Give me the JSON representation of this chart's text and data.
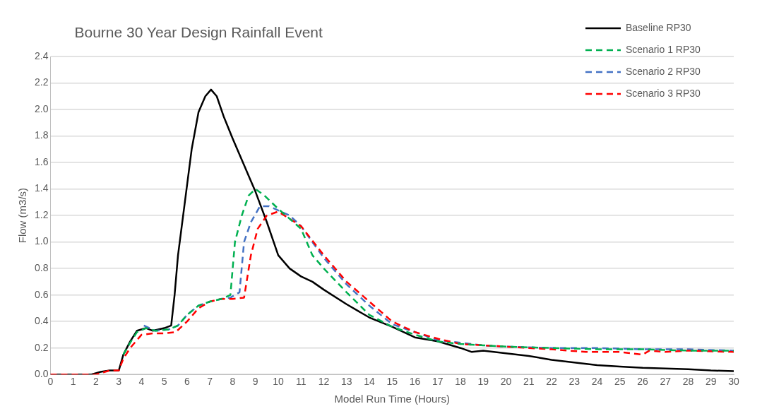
{
  "chart_data": {
    "type": "line",
    "title": "Bourne 30 Year Design Rainfall Event",
    "xlabel": "Model Run Time (Hours)",
    "ylabel": "Flow (m3/s)",
    "xlim": [
      0,
      30
    ],
    "xticks": [
      0,
      1,
      2,
      3,
      4,
      5,
      6,
      7,
      8,
      9,
      10,
      11,
      12,
      13,
      14,
      15,
      16,
      17,
      18,
      19,
      20,
      21,
      22,
      23,
      24,
      25,
      26,
      27,
      28,
      29,
      30
    ],
    "ylim": [
      0,
      2.4
    ],
    "yticks": [
      {
        "value": 0,
        "label": "0.0"
      },
      0.2,
      0.4,
      0.6,
      0.8,
      {
        "value": 1,
        "label": "1.0"
      },
      1.2,
      1.4,
      1.6,
      1.8,
      {
        "value": 2,
        "label": "2.0"
      },
      2.2,
      2.4
    ],
    "grid": "y",
    "legend": "top right",
    "marker": "none",
    "series": [
      {
        "name": "Baseline RP30",
        "color": "#000000",
        "line_style": "solid",
        "x": [
          0,
          1.8,
          2.2,
          2.6,
          3,
          3.2,
          3.5,
          3.8,
          4.2,
          4.5,
          5,
          5.3,
          5.45,
          5.6,
          5.9,
          6.2,
          6.5,
          6.8,
          7.05,
          7.3,
          7.6,
          8,
          8.5,
          9,
          9.5,
          10,
          10.5,
          11,
          11.5,
          12,
          13,
          14,
          15,
          16,
          17,
          18,
          18.5,
          19,
          20,
          21,
          22,
          23,
          24,
          25,
          26,
          27,
          28,
          29,
          30
        ],
        "values": [
          0,
          0,
          0.02,
          0.03,
          0.03,
          0.15,
          0.25,
          0.33,
          0.35,
          0.33,
          0.35,
          0.37,
          0.6,
          0.9,
          1.3,
          1.7,
          1.98,
          2.1,
          2.15,
          2.1,
          1.95,
          1.78,
          1.58,
          1.38,
          1.15,
          0.9,
          0.8,
          0.74,
          0.7,
          0.64,
          0.53,
          0.43,
          0.36,
          0.28,
          0.25,
          0.2,
          0.17,
          0.18,
          0.16,
          0.14,
          0.11,
          0.09,
          0.07,
          0.06,
          0.05,
          0.045,
          0.04,
          0.03,
          0.025
        ]
      },
      {
        "name": "Scenario 1 RP30",
        "color": "#00b050",
        "line_style": "dashed",
        "x": [
          3.2,
          3.5,
          3.8,
          4.2,
          4.6,
          5.2,
          5.6,
          6,
          6.5,
          7,
          7.5,
          7.9,
          8.1,
          8.4,
          8.7,
          9,
          9.4,
          10,
          11,
          11.5,
          12,
          13,
          14,
          15,
          16,
          17,
          18,
          19,
          20,
          22,
          24,
          26,
          28,
          30
        ],
        "values": [
          0.15,
          0.24,
          0.32,
          0.35,
          0.33,
          0.34,
          0.37,
          0.45,
          0.52,
          0.55,
          0.57,
          0.6,
          1,
          1.2,
          1.35,
          1.4,
          1.35,
          1.25,
          1.1,
          0.9,
          0.8,
          0.62,
          0.45,
          0.36,
          0.3,
          0.25,
          0.23,
          0.22,
          0.21,
          0.2,
          0.19,
          0.19,
          0.18,
          0.18
        ]
      },
      {
        "name": "Scenario 2 RP30",
        "color": "#4472c4",
        "line_style": "dashed",
        "x": [
          4.1,
          4.6,
          5.2,
          5.6,
          6,
          6.5,
          7,
          7.5,
          7.9,
          8.3,
          8.5,
          8.8,
          9.2,
          9.6,
          10.5,
          11,
          12,
          13,
          14,
          15,
          16,
          17,
          18,
          19,
          20,
          22,
          24,
          26,
          28,
          30
        ],
        "values": [
          0.37,
          0.33,
          0.34,
          0.37,
          0.45,
          0.52,
          0.55,
          0.57,
          0.58,
          0.62,
          1,
          1.15,
          1.27,
          1.27,
          1.2,
          1.12,
          0.88,
          0.68,
          0.52,
          0.38,
          0.32,
          0.26,
          0.24,
          0.22,
          0.21,
          0.2,
          0.2,
          0.19,
          0.19,
          0.18
        ]
      },
      {
        "name": "Scenario 3 RP30",
        "color": "#ff0000",
        "line_style": "dashed",
        "x": [
          0,
          2,
          2.6,
          3,
          3.2,
          3.5,
          4,
          4.5,
          5,
          5.5,
          6,
          6.5,
          7,
          7.5,
          8,
          8.5,
          8.8,
          9.1,
          9.5,
          10,
          11,
          12,
          13,
          14,
          15,
          16,
          17,
          18,
          19,
          20,
          22,
          23.5,
          25,
          26,
          26.3,
          27,
          28,
          30
        ],
        "values": [
          0,
          0,
          0.03,
          0.03,
          0.12,
          0.2,
          0.3,
          0.31,
          0.31,
          0.32,
          0.4,
          0.5,
          0.55,
          0.57,
          0.57,
          0.58,
          0.9,
          1.1,
          1.2,
          1.23,
          1.12,
          0.9,
          0.7,
          0.55,
          0.4,
          0.32,
          0.27,
          0.23,
          0.22,
          0.21,
          0.19,
          0.17,
          0.17,
          0.15,
          0.18,
          0.17,
          0.18,
          0.17
        ]
      }
    ]
  }
}
